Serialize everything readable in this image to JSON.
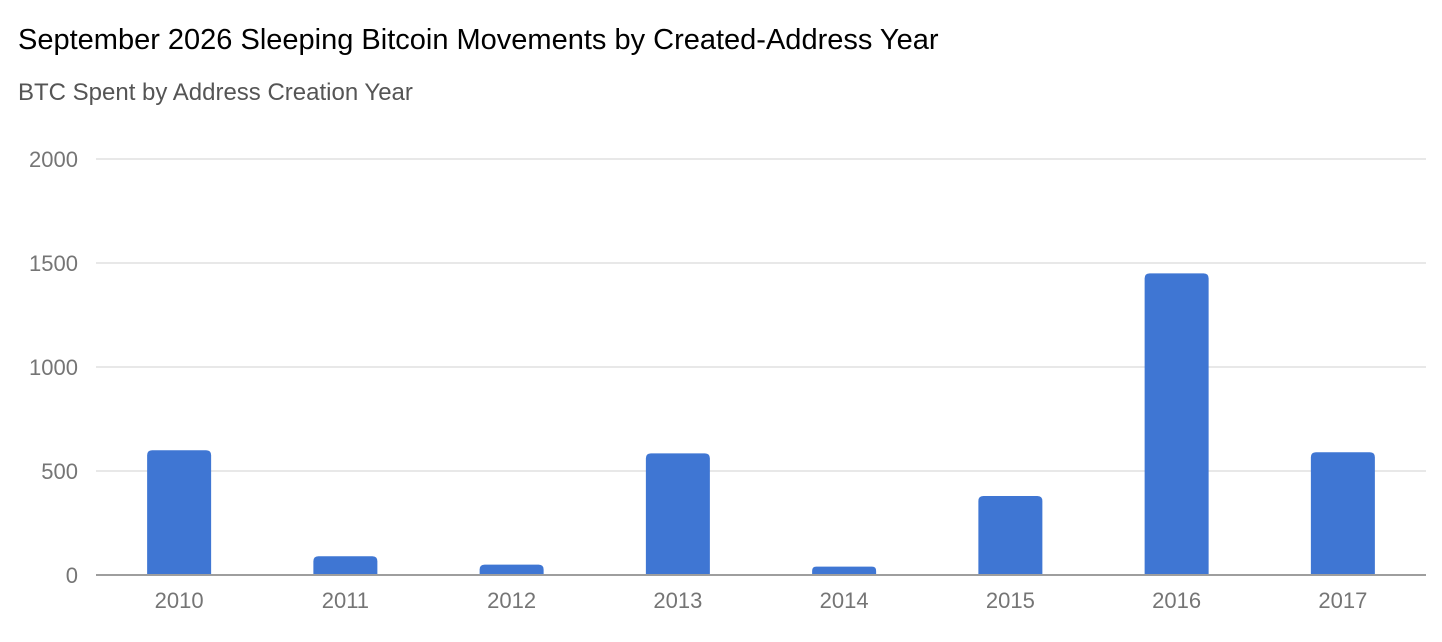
{
  "chart_data": {
    "type": "bar",
    "title": "September 2026 Sleeping Bitcoin Movements by Created-Address Year",
    "subtitle": "BTC Spent by Address Creation Year",
    "xlabel": "",
    "ylabel": "",
    "categories": [
      "2010",
      "2011",
      "2012",
      "2013",
      "2014",
      "2015",
      "2016",
      "2017"
    ],
    "values": [
      600,
      90,
      50,
      585,
      40,
      380,
      1450,
      590
    ],
    "ylim": [
      0,
      2000
    ],
    "yticks": [
      0,
      500,
      1000,
      1500,
      2000
    ],
    "grid": true,
    "legend": "none",
    "bar_color": "#3f76d3",
    "grid_color": "#e0e0e0",
    "axis_color": "#9e9e9e"
  }
}
